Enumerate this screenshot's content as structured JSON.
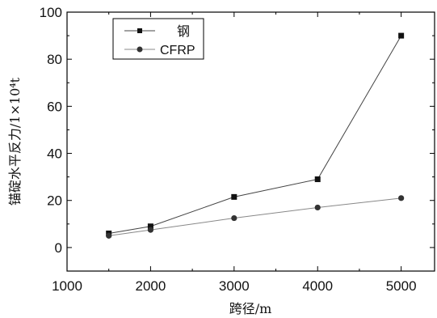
{
  "chart_data": {
    "type": "line",
    "xlabel": "跨径/m",
    "ylabel": "锚碇水平反力/1×10⁴t",
    "xlim": [
      1000,
      5400
    ],
    "ylim": [
      -10,
      100
    ],
    "x_ticks": [
      1000,
      2000,
      3000,
      4000,
      5000
    ],
    "y_ticks": [
      0,
      20,
      40,
      60,
      80,
      100
    ],
    "x_tick_labels": [
      "1000",
      "2000",
      "3000",
      "4000",
      "5000"
    ],
    "y_tick_labels": [
      "0",
      "20",
      "40",
      "60",
      "80",
      "100"
    ],
    "grid": false,
    "legend_position": "top-left",
    "series": [
      {
        "name": "钢",
        "marker": "square",
        "color": "#111111",
        "line_color": "#444444",
        "x": [
          1500,
          2000,
          3000,
          4000,
          5000
        ],
        "y": [
          6,
          9,
          21.5,
          29,
          90
        ]
      },
      {
        "name": "CFRP",
        "marker": "circle",
        "color": "#333333",
        "line_color": "#888888",
        "x": [
          1500,
          2000,
          3000,
          4000,
          5000
        ],
        "y": [
          5,
          7.5,
          12.5,
          17,
          21
        ]
      }
    ]
  }
}
